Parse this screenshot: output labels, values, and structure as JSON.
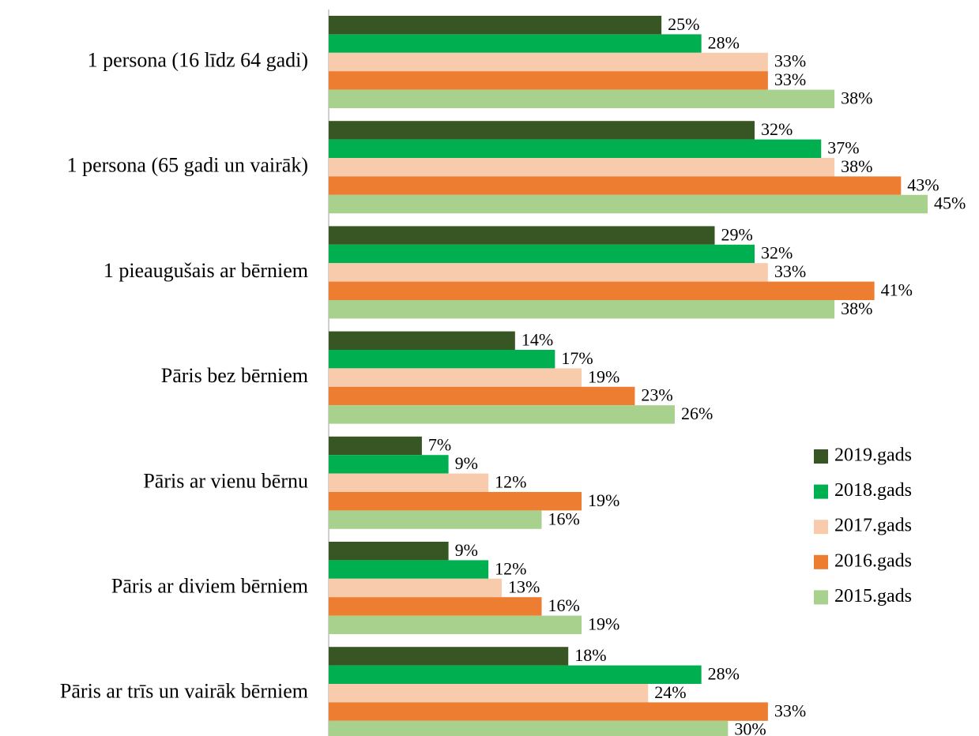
{
  "chart_data": {
    "type": "bar",
    "orientation": "horizontal",
    "categories": [
      "1 persona (16 līdz 64 gadi)",
      "1 persona (65 gadi un vairāk)",
      "1 pieaugušais ar bērniem",
      "Pāris bez bērniem",
      "Pāris ar vienu bērnu",
      "Pāris ar diviem bērniem",
      "Pāris ar trīs un vairāk bērniem"
    ],
    "series": [
      {
        "name": "2019.gads",
        "color": "#375623",
        "values": [
          25,
          32,
          29,
          14,
          7,
          9,
          18
        ],
        "value_labels": [
          "25%",
          "32%",
          "29%",
          "14%",
          "7%",
          "9%",
          "18%"
        ]
      },
      {
        "name": "2018.gads",
        "color": "#00b050",
        "values": [
          28,
          37,
          32,
          17,
          9,
          12,
          28
        ],
        "value_labels": [
          "28%",
          "37%",
          "32%",
          "17%",
          "9%",
          "12%",
          "28%"
        ]
      },
      {
        "name": "2017.gads",
        "color": "#f8cbad",
        "values": [
          33,
          38,
          33,
          19,
          12,
          13,
          24
        ],
        "value_labels": [
          "33%",
          "38%",
          "33%",
          "19%",
          "12%",
          "13%",
          "24%"
        ]
      },
      {
        "name": "2016.gads",
        "color": "#ed7d31",
        "values": [
          33,
          43,
          41,
          23,
          19,
          16,
          33
        ],
        "value_labels": [
          "33%",
          "43%",
          "41%",
          "23%",
          "19%",
          "16%",
          "33%"
        ]
      },
      {
        "name": "2015.gads",
        "color": "#a9d18e",
        "values": [
          38,
          45,
          38,
          26,
          16,
          19,
          30
        ],
        "value_labels": [
          "38%",
          "45%",
          "38%",
          "26%",
          "16%",
          "19%",
          "30%"
        ]
      }
    ],
    "xlim": [
      0,
      45
    ],
    "legend": "right"
  }
}
